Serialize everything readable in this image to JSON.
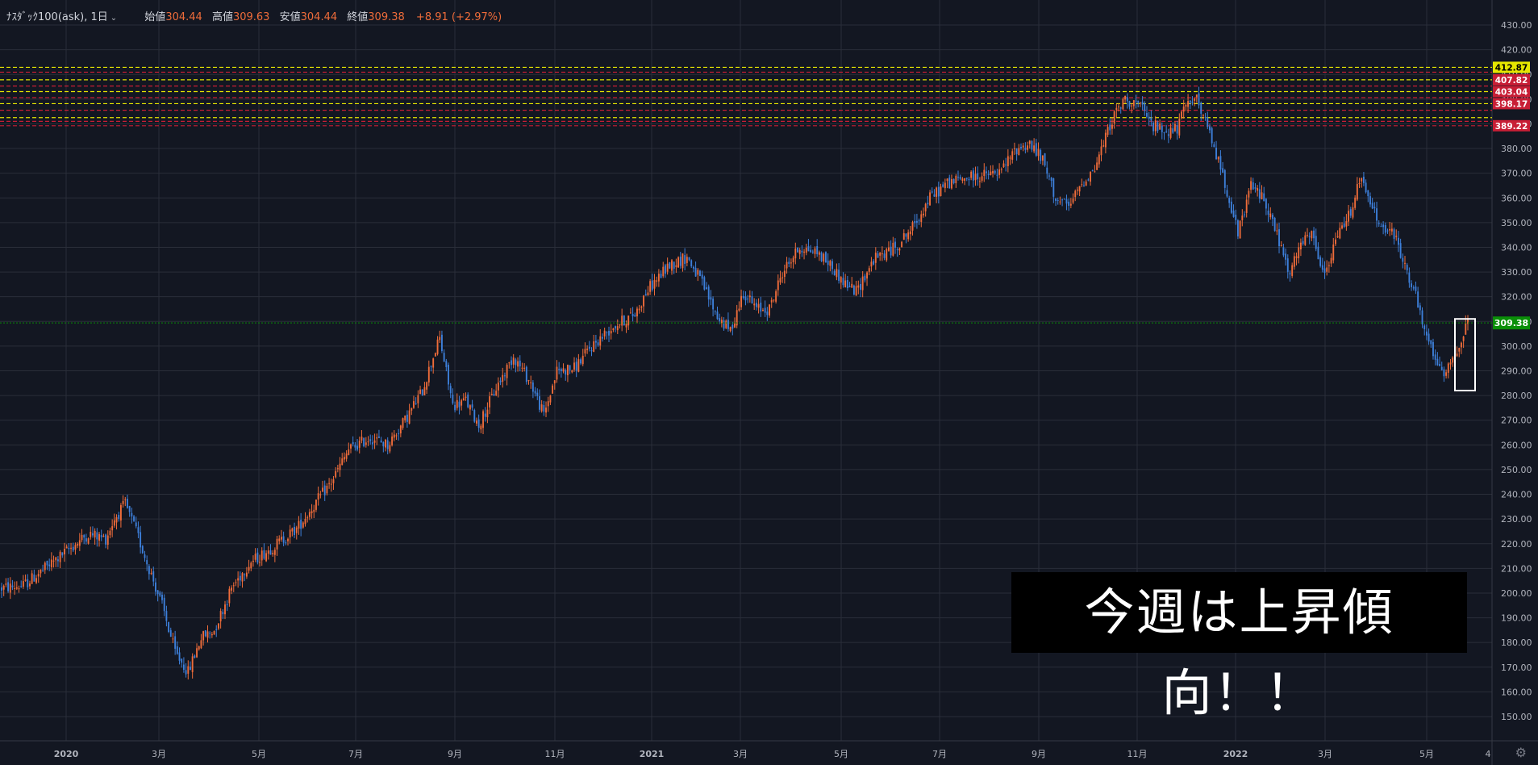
{
  "legend": {
    "symbol": "ﾅｽﾀﾞｯｸ100(ask), 1日",
    "open_label": "始値",
    "open": "304.44",
    "high_label": "高値",
    "high": "309.63",
    "low_label": "安値",
    "low": "304.44",
    "close_label": "終値",
    "close": "309.38",
    "change": "+8.91 (+2.97%)"
  },
  "annotation": "今週は上昇傾向！！",
  "colors": {
    "background": "#131722",
    "grid": "#2a2e39",
    "up": "#ef6c3a",
    "down": "#3d7fd9",
    "text": "#b2b5be",
    "current": "#0a8f08",
    "red_level": "#c81e35",
    "yellow_level": "#e6e600"
  },
  "chart_data": {
    "type": "candlestick",
    "x_ticks": [
      "2020",
      "3月",
      "5月",
      "7月",
      "9月",
      "11月",
      "2021",
      "3月",
      "5月",
      "7月",
      "9月",
      "11月",
      "2022",
      "3月",
      "5月",
      "4"
    ],
    "y_ticks": [
      150,
      160,
      170,
      180,
      190,
      200,
      210,
      220,
      230,
      240,
      250,
      260,
      270,
      280,
      290,
      300,
      310,
      320,
      330,
      340,
      350,
      360,
      370,
      380,
      390,
      400,
      410,
      420,
      430
    ],
    "ylim": [
      145,
      435
    ],
    "current_price": "309.38",
    "price_labels": [
      {
        "text": "412.87",
        "value": 412.87,
        "color": "#e6e600"
      },
      {
        "text": "407.82",
        "value": 407.82,
        "color": "#c81e35"
      },
      {
        "text": "403.04",
        "value": 403.04,
        "color": "#c81e35"
      },
      {
        "text": "398.17",
        "value": 398.17,
        "color": "#c81e35"
      },
      {
        "text": "389.22",
        "value": 389.22,
        "color": "#c81e35"
      }
    ],
    "levels": [
      {
        "value": 412.87,
        "color": "#e6e600"
      },
      {
        "value": 410.9,
        "color": "#c81e35"
      },
      {
        "value": 407.82,
        "color": "#e6e600"
      },
      {
        "value": 405.3,
        "color": "#c81e35"
      },
      {
        "value": 403.04,
        "color": "#e6e600"
      },
      {
        "value": 400.6,
        "color": "#c81e35"
      },
      {
        "value": 398.17,
        "color": "#e6e600"
      },
      {
        "value": 395.5,
        "color": "#c81e35"
      },
      {
        "value": 392.5,
        "color": "#e6e600"
      },
      {
        "value": 391.0,
        "color": "#c81e35"
      },
      {
        "value": 389.22,
        "color": "#c81e35"
      }
    ],
    "trend": [
      [
        0,
        202
      ],
      [
        10,
        203
      ],
      [
        20,
        210
      ],
      [
        30,
        217
      ],
      [
        40,
        224
      ],
      [
        48,
        222
      ],
      [
        52,
        230
      ],
      [
        57,
        236
      ],
      [
        62,
        225
      ],
      [
        68,
        210
      ],
      [
        74,
        195
      ],
      [
        80,
        176
      ],
      [
        86,
        168
      ],
      [
        92,
        182
      ],
      [
        98,
        185
      ],
      [
        106,
        202
      ],
      [
        114,
        212
      ],
      [
        124,
        218
      ],
      [
        136,
        226
      ],
      [
        146,
        238
      ],
      [
        152,
        245
      ],
      [
        160,
        258
      ],
      [
        170,
        263
      ],
      [
        178,
        260
      ],
      [
        186,
        270
      ],
      [
        194,
        282
      ],
      [
        199,
        296
      ],
      [
        202,
        303
      ],
      [
        208,
        276
      ],
      [
        214,
        278
      ],
      [
        220,
        268
      ],
      [
        228,
        283
      ],
      [
        236,
        296
      ],
      [
        244,
        285
      ],
      [
        250,
        272
      ],
      [
        256,
        290
      ],
      [
        264,
        291
      ],
      [
        272,
        300
      ],
      [
        282,
        308
      ],
      [
        292,
        313
      ],
      [
        298,
        323
      ],
      [
        308,
        333
      ],
      [
        316,
        336
      ],
      [
        322,
        327
      ],
      [
        330,
        312
      ],
      [
        336,
        306
      ],
      [
        342,
        322
      ],
      [
        348,
        315
      ],
      [
        354,
        315
      ],
      [
        360,
        330
      ],
      [
        368,
        340
      ],
      [
        376,
        338
      ],
      [
        382,
        333
      ],
      [
        388,
        326
      ],
      [
        394,
        322
      ],
      [
        402,
        335
      ],
      [
        412,
        340
      ],
      [
        420,
        348
      ],
      [
        428,
        360
      ],
      [
        436,
        366
      ],
      [
        444,
        368
      ],
      [
        452,
        369
      ],
      [
        460,
        370
      ],
      [
        468,
        380
      ],
      [
        474,
        382
      ],
      [
        480,
        375
      ],
      [
        486,
        360
      ],
      [
        492,
        356
      ],
      [
        498,
        366
      ],
      [
        504,
        372
      ],
      [
        512,
        392
      ],
      [
        518,
        400
      ],
      [
        524,
        398
      ],
      [
        530,
        390
      ],
      [
        536,
        387
      ],
      [
        542,
        388
      ],
      [
        546,
        397
      ],
      [
        550,
        402
      ],
      [
        556,
        388
      ],
      [
        560,
        378
      ],
      [
        566,
        360
      ],
      [
        570,
        345
      ],
      [
        576,
        365
      ],
      [
        582,
        360
      ],
      [
        588,
        345
      ],
      [
        594,
        328
      ],
      [
        598,
        340
      ],
      [
        604,
        345
      ],
      [
        610,
        328
      ],
      [
        616,
        345
      ],
      [
        622,
        355
      ],
      [
        626,
        368
      ],
      [
        630,
        360
      ],
      [
        636,
        348
      ],
      [
        642,
        345
      ],
      [
        648,
        330
      ],
      [
        652,
        320
      ],
      [
        656,
        305
      ],
      [
        660,
        298
      ],
      [
        664,
        288
      ],
      [
        668,
        294
      ],
      [
        672,
        300
      ],
      [
        676,
        310
      ]
    ]
  }
}
